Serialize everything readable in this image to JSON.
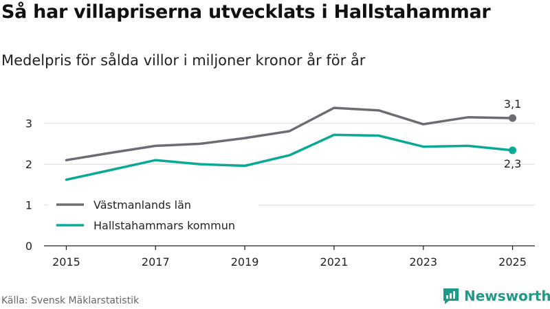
{
  "title": "Så har villapriserna utvecklats i Hallstahammar",
  "subtitle": "Medelpris för sålda villor i miljoner kronor år för år",
  "source": "Källa: Svensk Mäklarstatistik",
  "brand": "Newsworthy",
  "colors": {
    "lan": "#6d6c72",
    "kommun": "#0aa896",
    "grid": "#d9d9d9",
    "axis": "#222222"
  },
  "chart_data": {
    "type": "line",
    "title": "Så har villapriserna utvecklats i Hallstahammar",
    "subtitle": "Medelpris för sålda villor i miljoner kronor år för år",
    "xlabel": "",
    "ylabel": "",
    "x": [
      2015,
      2016,
      2017,
      2018,
      2019,
      2020,
      2021,
      2022,
      2023,
      2024,
      2025
    ],
    "xticks": [
      2015,
      2017,
      2019,
      2021,
      2023,
      2025
    ],
    "xlim": [
      2014.5,
      2025.5
    ],
    "yticks": [
      0,
      1,
      2,
      3
    ],
    "ylim": [
      0,
      3.5
    ],
    "grid": "horizontal",
    "legend_position": "lower-left",
    "series": [
      {
        "name": "Västmanlands län",
        "color_key": "lan",
        "values": [
          2.1,
          2.28,
          2.45,
          2.5,
          2.64,
          2.81,
          3.38,
          3.32,
          2.98,
          3.15,
          3.13
        ],
        "end_label": "3,1",
        "end_label_position": "above"
      },
      {
        "name": "Hallstahammars kommun",
        "color_key": "kommun",
        "values": [
          1.62,
          1.86,
          2.1,
          2.0,
          1.96,
          2.22,
          2.72,
          2.7,
          2.43,
          2.45,
          2.34
        ],
        "end_label": "2,3",
        "end_label_position": "below"
      }
    ]
  }
}
